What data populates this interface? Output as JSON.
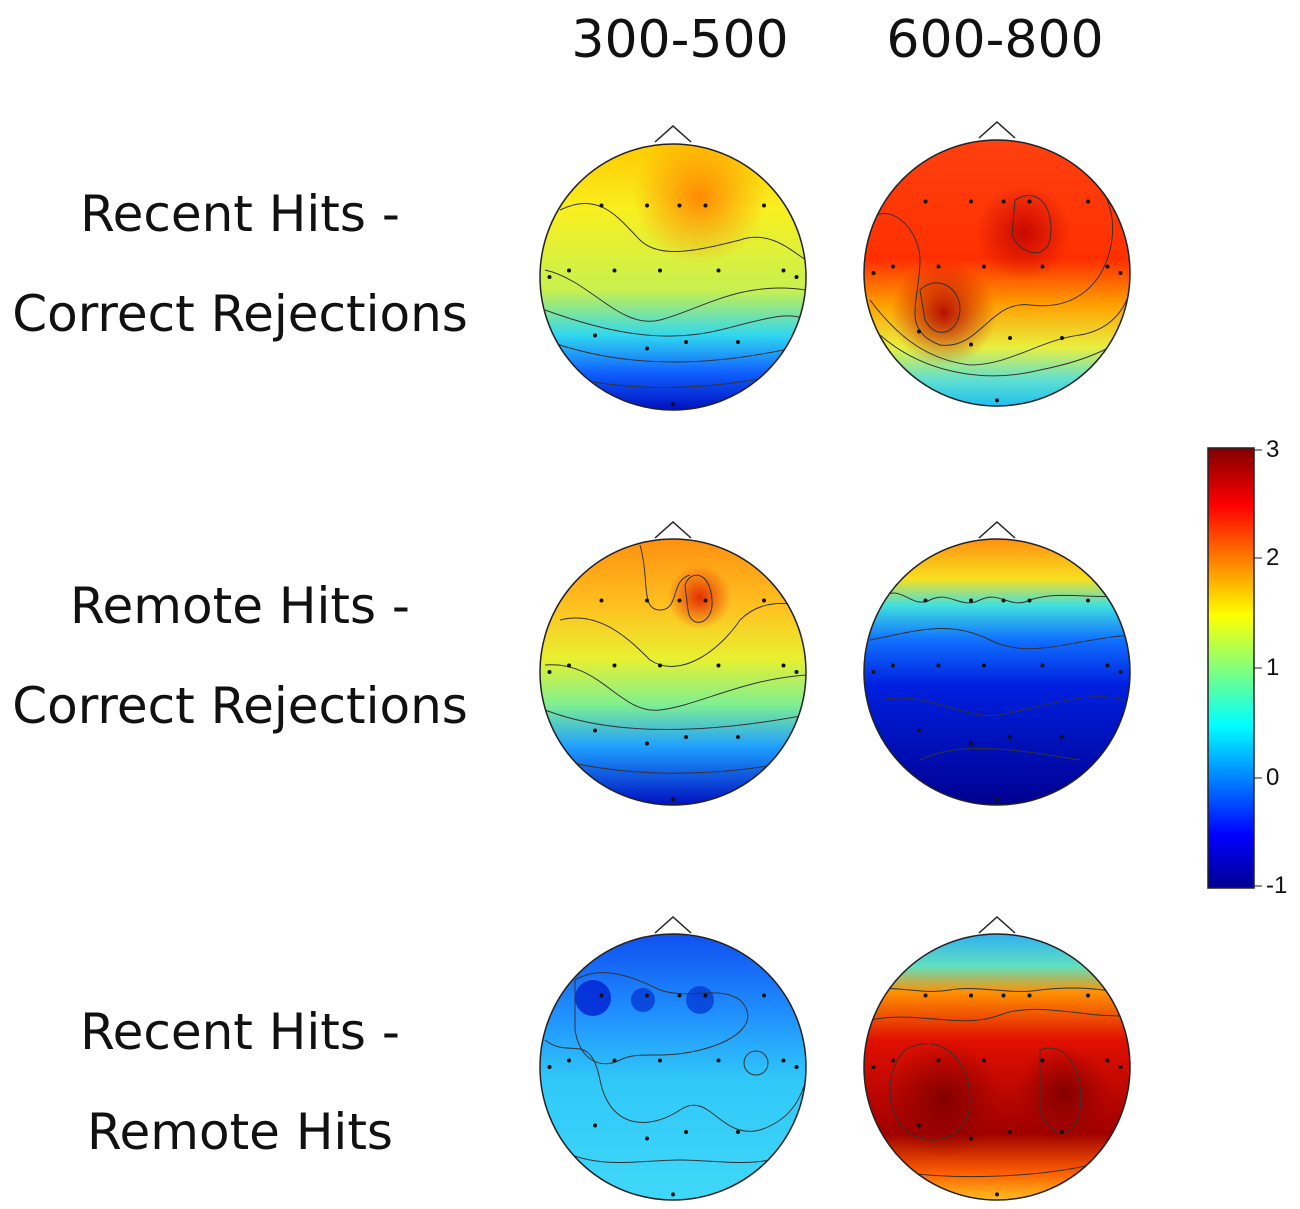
{
  "columns": [
    "300-500",
    "600-800"
  ],
  "rows": [
    {
      "line1": "Recent Hits -",
      "line2": "Correct Rejections"
    },
    {
      "line1": "Remote Hits -",
      "line2": "Correct Rejections"
    },
    {
      "line1": "Recent Hits -",
      "line2": "Remote Hits"
    }
  ],
  "colorbar": {
    "ticks": [
      "3",
      "2",
      "1",
      "0",
      "-1"
    ],
    "range": [
      -1,
      3
    ],
    "colormap": [
      "#00008f",
      "#0000ff",
      "#00ffff",
      "#ffff00",
      "#ff0000",
      "#800000"
    ]
  },
  "maps": [
    {
      "row": 0,
      "col": 0,
      "description_colors": [
        "#fdd000",
        "#f0f020",
        "#20a0ff",
        "#0010c0"
      ]
    },
    {
      "row": 0,
      "col": 1
    },
    {
      "row": 1,
      "col": 0
    },
    {
      "row": 1,
      "col": 1
    },
    {
      "row": 2,
      "col": 0
    },
    {
      "row": 2,
      "col": 1
    }
  ]
}
